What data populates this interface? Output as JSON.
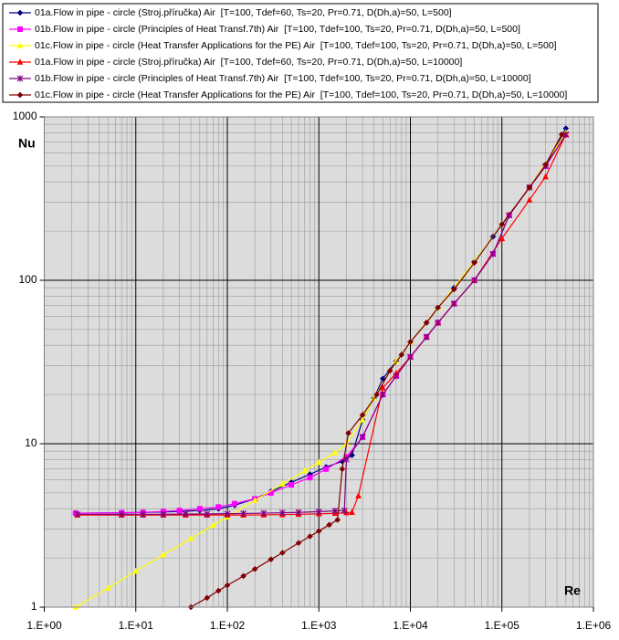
{
  "chart_data": {
    "type": "line",
    "x_label": "Re",
    "y_label": "Nu",
    "log_x": true,
    "log_y": true,
    "grid": true,
    "minor_grid": true,
    "legend": "top",
    "xlim": [
      1,
      1000000
    ],
    "ylim": [
      1,
      1000
    ],
    "xticks": [
      {
        "value": 1,
        "label": "1.E+00"
      },
      {
        "value": 10,
        "label": "1.E+01"
      },
      {
        "value": 100,
        "label": "1.E+02"
      },
      {
        "value": 1000,
        "label": "1.E+03"
      },
      {
        "value": 10000,
        "label": "1.E+04"
      },
      {
        "value": 100000,
        "label": "1.E+05"
      },
      {
        "value": 1000000,
        "label": "1.E+06"
      }
    ],
    "yticks": [
      1,
      10,
      100,
      1000
    ],
    "series": [
      {
        "name": "01a.Flow in pipe - circle (Stroj.příručka) Air  [T=100, Tdef=60, Ts=20, Pr=0.71, D(Dh,a)=50, L=500]",
        "color": "#000080",
        "marker": "diamond",
        "x": [
          2.2,
          7,
          12,
          20,
          30,
          50,
          80,
          120,
          200,
          300,
          500,
          800,
          1200,
          1800,
          2300,
          3000,
          4000,
          5000,
          7000,
          10000,
          15000,
          20000,
          30000,
          50000,
          80000,
          120000,
          200000,
          300000,
          500000
        ],
        "values": [
          3.76,
          3.78,
          3.8,
          3.82,
          3.85,
          3.9,
          4.0,
          4.2,
          4.6,
          5.1,
          5.8,
          6.5,
          7.2,
          7.8,
          8.5,
          14,
          19,
          25,
          32,
          42,
          55,
          68,
          90,
          130,
          185,
          250,
          370,
          500,
          850
        ]
      },
      {
        "name": "01b.Flow in pipe - circle (Principles of Heat Transf.7th) Air  [T=100, Tdef=100, Ts=20, Pr=0.71, D(Dh,a)=50, L=500]",
        "color": "#ff00ff",
        "marker": "square",
        "x": [
          2.2,
          7,
          12,
          20,
          30,
          50,
          80,
          120,
          200,
          300,
          500,
          800,
          1200,
          2000,
          3000,
          5000,
          7000,
          10000,
          15000,
          20000,
          30000,
          50000,
          80000,
          120000,
          200000,
          300000,
          500000
        ],
        "values": [
          3.76,
          3.78,
          3.8,
          3.85,
          3.9,
          4.0,
          4.1,
          4.3,
          4.6,
          5.0,
          5.6,
          6.2,
          7.0,
          8.3,
          11,
          20,
          26,
          34,
          45,
          55,
          72,
          100,
          145,
          250,
          370,
          500,
          780
        ]
      },
      {
        "name": "01c.Flow in pipe - circle (Heat Transfer Applications for the PE) Air  [T=100, Tdef=100, Ts=20, Pr=0.71, D(Dh,a)=50, L=500]",
        "color": "#ffff00",
        "marker": "triangle",
        "x": [
          2.2,
          5,
          10,
          20,
          40,
          70,
          100,
          200,
          400,
          700,
          1000,
          1500,
          2000,
          3000,
          4000,
          7000,
          10000,
          20000,
          50000,
          100000,
          200000,
          500000
        ],
        "values": [
          1.0,
          1.31,
          1.66,
          2.09,
          2.63,
          3.17,
          3.57,
          4.5,
          5.67,
          6.83,
          7.7,
          8.8,
          10,
          14,
          19,
          32,
          42,
          68,
          130,
          220,
          370,
          800
        ]
      },
      {
        "name": "01a.Flow in pipe - circle (Stroj.příručka) Air  [T=100, Tdef=60, Ts=20, Pr=0.71, D(Dh,a)=50, L=10000]",
        "color": "#ff0000",
        "marker": "triangle",
        "x": [
          2.3,
          7,
          12,
          20,
          35,
          60,
          100,
          150,
          250,
          400,
          600,
          1000,
          1500,
          2000,
          2300,
          2700,
          5000,
          7000,
          10000,
          15000,
          20000,
          30000,
          50000,
          100000,
          200000,
          300000,
          500000
        ],
        "values": [
          3.66,
          3.66,
          3.66,
          3.66,
          3.66,
          3.66,
          3.66,
          3.66,
          3.67,
          3.68,
          3.7,
          3.72,
          3.75,
          3.78,
          3.8,
          4.8,
          22,
          27,
          34,
          45,
          55,
          72,
          100,
          180,
          310,
          430,
          780
        ]
      },
      {
        "name": "01b.Flow in pipe - circle (Principles of Heat Transf.7th) Air  [T=100, Tdef=100, Ts=20, Pr=0.71, D(Dh,a)=50, L=10000]",
        "color": "#800080",
        "marker": "star",
        "x": [
          2.3,
          7,
          12,
          20,
          35,
          60,
          100,
          150,
          250,
          400,
          600,
          1000,
          1500,
          1900,
          2000,
          3000,
          5000,
          7000,
          10000,
          15000,
          20000,
          30000,
          50000,
          80000,
          120000,
          200000,
          300000,
          500000
        ],
        "values": [
          3.7,
          3.7,
          3.7,
          3.7,
          3.71,
          3.72,
          3.73,
          3.74,
          3.76,
          3.78,
          3.8,
          3.84,
          3.88,
          3.9,
          8.0,
          11,
          20,
          26,
          34,
          45,
          55,
          72,
          100,
          145,
          250,
          370,
          500,
          780
        ]
      },
      {
        "name": "01c.Flow in pipe - circle (Heat Transfer Applications for the PE) Air  [T=100, Tdef=100, Ts=20, Pr=0.71, D(Dh,a)=50, L=10000]",
        "color": "#800000",
        "marker": "diamond",
        "x": [
          40,
          60,
          80,
          100,
          150,
          200,
          300,
          400,
          600,
          800,
          1000,
          1300,
          1600,
          1800,
          2100,
          3000,
          4300,
          6000,
          8000,
          10000,
          15000,
          20000,
          30000,
          50000,
          100000,
          200000,
          300000,
          450000
        ],
        "values": [
          1.0,
          1.14,
          1.26,
          1.36,
          1.55,
          1.71,
          1.96,
          2.15,
          2.47,
          2.71,
          2.92,
          3.19,
          3.42,
          7.0,
          11.6,
          15,
          20,
          28,
          35,
          42,
          55,
          68,
          88,
          128,
          220,
          370,
          510,
          780
        ]
      }
    ]
  }
}
